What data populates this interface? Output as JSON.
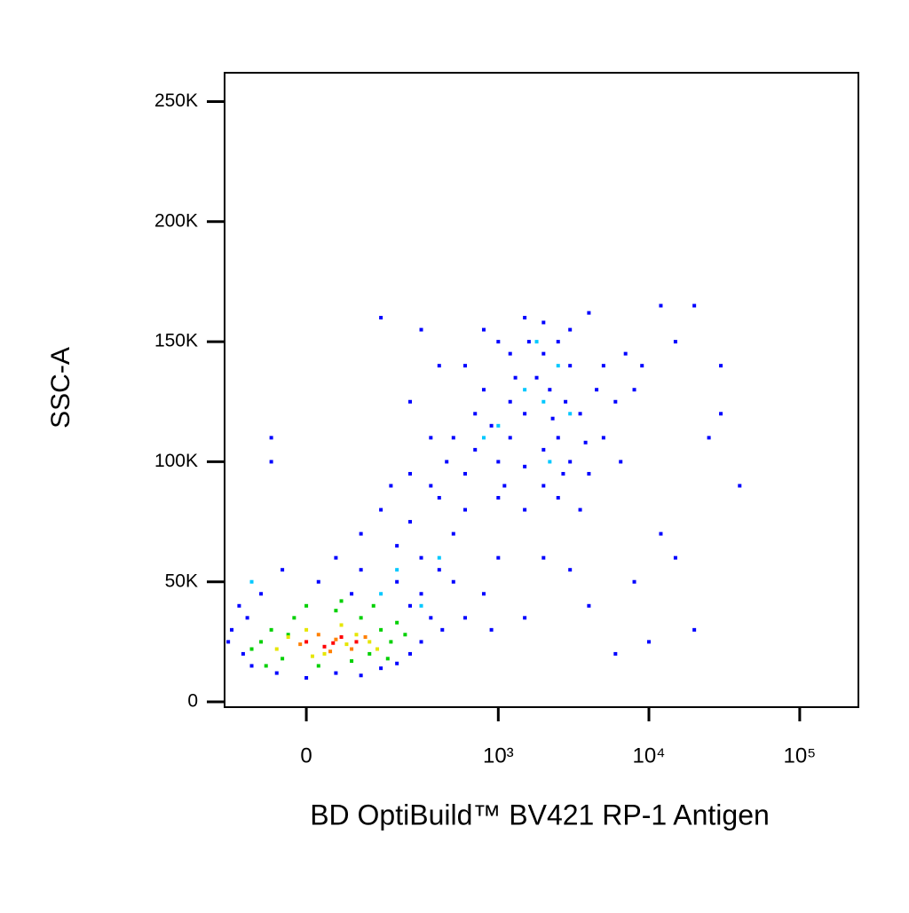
{
  "chart_data": {
    "type": "scatter",
    "x_label": "BD OptiBuild™ BV421 RP-1 Antigen",
    "y_label": "SSC-A",
    "xscale": "biexponential",
    "xlim": [
      -171,
      245000
    ],
    "xticks": [
      0,
      {
        "value": 1000,
        "label": "10³"
      },
      {
        "value": 10000,
        "label": "10⁴"
      },
      {
        "value": 100000,
        "label": "10⁵"
      }
    ],
    "ylim": [
      -2200,
      262000
    ],
    "yticks": [
      0,
      {
        "value": 50000,
        "label": "50K"
      },
      {
        "value": 100000,
        "label": "100K"
      },
      {
        "value": 150000,
        "label": "150K"
      },
      {
        "value": 200000,
        "label": "200K"
      },
      {
        "value": 250000,
        "label": "250K"
      }
    ],
    "series": [
      {
        "color": "#0000ff",
        "x": [
          600,
          800,
          1000,
          1200,
          1500,
          2000,
          2500,
          3000,
          4000,
          1800,
          2200,
          2800,
          3500,
          1500,
          1200,
          900,
          700,
          600,
          1000,
          1500,
          2000,
          2500,
          3000,
          4000,
          5000,
          6000,
          5000,
          7000,
          8000,
          1000,
          1500,
          2500,
          3500,
          2000,
          1200,
          800,
          3000,
          4500,
          2000,
          1600,
          700,
          500,
          1100,
          2700,
          3800,
          1300,
          2300,
          6500,
          9000,
          12000,
          15000,
          20000,
          30000,
          30000,
          25000,
          40000,
          12000,
          8000,
          15000,
          20000,
          10000,
          6000,
          3000,
          2000,
          4000,
          1500,
          900,
          -60,
          -60,
          150,
          300,
          400,
          250,
          350,
          450,
          100,
          150,
          200,
          250,
          300,
          350,
          400,
          200,
          300,
          400,
          500,
          100,
          50,
          180,
          500,
          600,
          250,
          420,
          600,
          800,
          1000,
          -150,
          -120,
          -100,
          -80,
          -50,
          0,
          50,
          100,
          150,
          200,
          250,
          300,
          -130,
          -40,
          20,
          80,
          350,
          250,
          -160,
          -110
        ],
        "values": [
          140000,
          155000,
          150000,
          145000,
          160000,
          158000,
          150000,
          155000,
          162000,
          135000,
          130000,
          125000,
          120000,
          120000,
          110000,
          115000,
          105000,
          95000,
          100000,
          98000,
          105000,
          110000,
          100000,
          95000,
          110000,
          125000,
          140000,
          145000,
          130000,
          85000,
          80000,
          85000,
          80000,
          90000,
          125000,
          130000,
          140000,
          130000,
          145000,
          150000,
          120000,
          110000,
          90000,
          95000,
          108000,
          135000,
          118000,
          100000,
          140000,
          165000,
          150000,
          165000,
          140000,
          120000,
          110000,
          90000,
          70000,
          50000,
          60000,
          30000,
          25000,
          20000,
          55000,
          60000,
          40000,
          35000,
          30000,
          110000,
          100000,
          160000,
          155000,
          140000,
          125000,
          110000,
          100000,
          70000,
          80000,
          65000,
          75000,
          60000,
          90000,
          85000,
          50000,
          45000,
          55000,
          70000,
          55000,
          60000,
          90000,
          50000,
          80000,
          95000,
          30000,
          35000,
          45000,
          60000,
          30000,
          20000,
          15000,
          45000,
          12000,
          10000,
          12000,
          11000,
          14000,
          16000,
          20000,
          25000,
          40000,
          55000,
          50000,
          45000,
          35000,
          40000,
          25000,
          35000
        ]
      },
      {
        "color": "#00c8ff",
        "x": [
          1500,
          2000,
          2500,
          1000,
          3000,
          800,
          2200,
          400,
          200,
          150,
          -100,
          300,
          1800
        ],
        "values": [
          130000,
          125000,
          140000,
          115000,
          120000,
          110000,
          100000,
          60000,
          55000,
          45000,
          50000,
          40000,
          150000
        ]
      },
      {
        "color": "#00d000",
        "x": [
          -80,
          -60,
          -40,
          -20,
          0,
          20,
          50,
          80,
          100,
          120,
          150,
          180,
          200,
          -100,
          -70,
          230,
          60,
          130,
          -30,
          170
        ],
        "values": [
          25000,
          30000,
          18000,
          35000,
          40000,
          15000,
          38000,
          17000,
          35000,
          20000,
          30000,
          25000,
          33000,
          22000,
          15000,
          28000,
          42000,
          40000,
          28000,
          18000
        ]
      },
      {
        "color": "#e6e600",
        "x": [
          -50,
          -30,
          0,
          30,
          60,
          90,
          120,
          140,
          10,
          70
        ],
        "values": [
          22000,
          27000,
          30000,
          20000,
          32000,
          28000,
          25000,
          22000,
          19000,
          24000
        ]
      },
      {
        "color": "#ff8000",
        "x": [
          -10,
          20,
          50,
          80,
          110,
          40
        ],
        "values": [
          24000,
          28000,
          26000,
          22000,
          27000,
          21000
        ]
      },
      {
        "color": "#ff0000",
        "x": [
          0,
          30,
          60,
          90,
          45
        ],
        "values": [
          25000,
          23000,
          27000,
          25000,
          24500
        ]
      }
    ]
  }
}
